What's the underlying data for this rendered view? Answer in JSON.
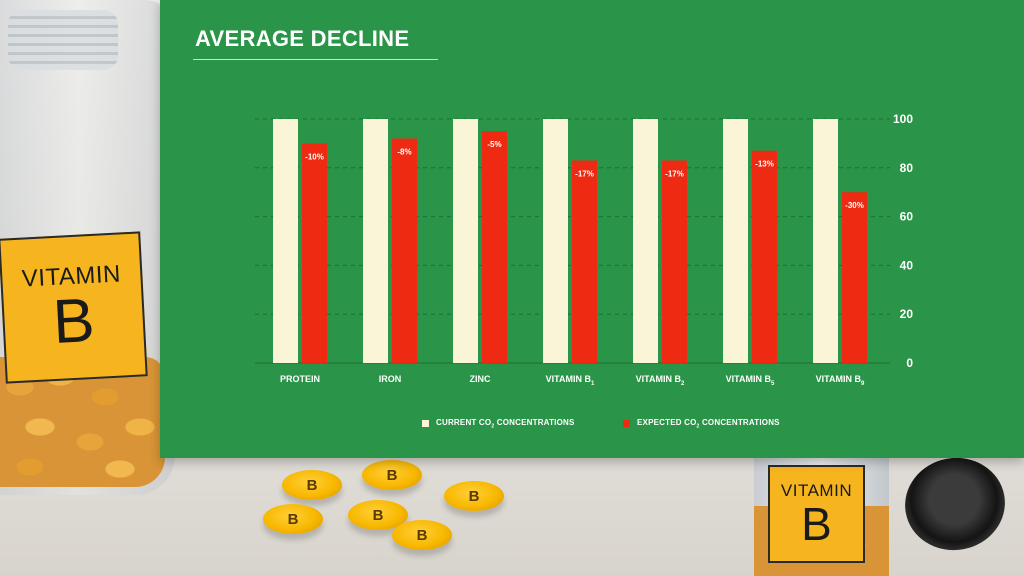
{
  "chart_data": {
    "type": "bar",
    "title": "AVERAGE DECLINE",
    "categories": [
      {
        "label": "PROTEIN",
        "sub": ""
      },
      {
        "label": "IRON",
        "sub": ""
      },
      {
        "label": "ZINC",
        "sub": ""
      },
      {
        "label": "VITAMIN B",
        "sub": "1"
      },
      {
        "label": "VITAMIN B",
        "sub": "2"
      },
      {
        "label": "VITAMIN B",
        "sub": "5"
      },
      {
        "label": "VITAMIN B",
        "sub": "9"
      }
    ],
    "series": [
      {
        "name": "CURRENT CO2 CONCENTRATIONS",
        "values": [
          100,
          100,
          100,
          100,
          100,
          100,
          100
        ]
      },
      {
        "name": "EXPECTED CO2 CONCENTRATIONS",
        "values": [
          90,
          92,
          95,
          83,
          83,
          87,
          70
        ]
      }
    ],
    "data_labels": [
      "-10%",
      "-8%",
      "-5%",
      "-17%",
      "-17%",
      "-13%",
      "-30%"
    ],
    "ylim": [
      0,
      100
    ],
    "yticks": [
      0,
      20,
      40,
      60,
      80,
      100
    ],
    "y_axis_side": "right",
    "grid": "dashed horizontal",
    "legend_placement": "bottom",
    "colors": {
      "panel": "#2a9448",
      "current": "#fbf5d8",
      "expected": "#ee2b12",
      "text": "#ffffff",
      "grid": "#1d6f33"
    }
  },
  "legend": [
    {
      "prefix": "CURRENT CO",
      "sub": "2",
      "suffix": " CONCENTRATIONS"
    },
    {
      "prefix": "EXPECTED CO",
      "sub": "2",
      "suffix": " CONCENTRATIONS"
    }
  ],
  "background": {
    "jar_label_word": "VITAMIN",
    "jar_label_letter": "B",
    "pill_letter": "B"
  }
}
